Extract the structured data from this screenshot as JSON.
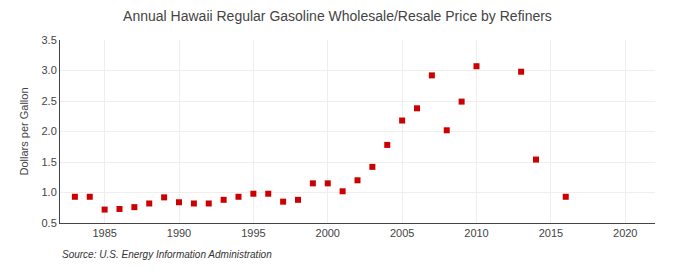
{
  "chart_data": {
    "type": "scatter",
    "title": "Annual Hawaii Regular Gasoline Wholesale/Resale Price by Refiners",
    "ylabel": "Dollars per Gallon",
    "annotations": [
      "Source: U.S. Energy Information Administration"
    ],
    "x": [
      1983,
      1984,
      1985,
      1986,
      1987,
      1988,
      1989,
      1990,
      1991,
      1992,
      1993,
      1994,
      1995,
      1996,
      1997,
      1998,
      1999,
      2000,
      2001,
      2002,
      2003,
      2004,
      2005,
      2006,
      2007,
      2008,
      2009,
      2010,
      2013,
      2014,
      2016
    ],
    "values": [
      0.93,
      0.93,
      0.72,
      0.73,
      0.76,
      0.82,
      0.92,
      0.84,
      0.82,
      0.82,
      0.88,
      0.93,
      0.98,
      0.98,
      0.85,
      0.88,
      1.15,
      1.15,
      1.02,
      1.2,
      1.42,
      1.78,
      2.18,
      2.38,
      2.92,
      2.02,
      2.49,
      3.07,
      2.98,
      1.54,
      0.93
    ],
    "color": "#cc0000",
    "marker": "square",
    "xlim": [
      1982,
      2022
    ],
    "ylim": [
      0.5,
      3.5
    ],
    "xticks": [
      1985,
      1990,
      1995,
      2000,
      2005,
      2010,
      2015,
      2020
    ],
    "yticks": [
      0.5,
      {
        "value": 1.0,
        "label": "1.0"
      },
      1.5,
      {
        "value": 2.0,
        "label": "2.0"
      },
      2.5,
      {
        "value": 3.0,
        "label": "3.0"
      },
      3.5
    ],
    "grid": true
  }
}
